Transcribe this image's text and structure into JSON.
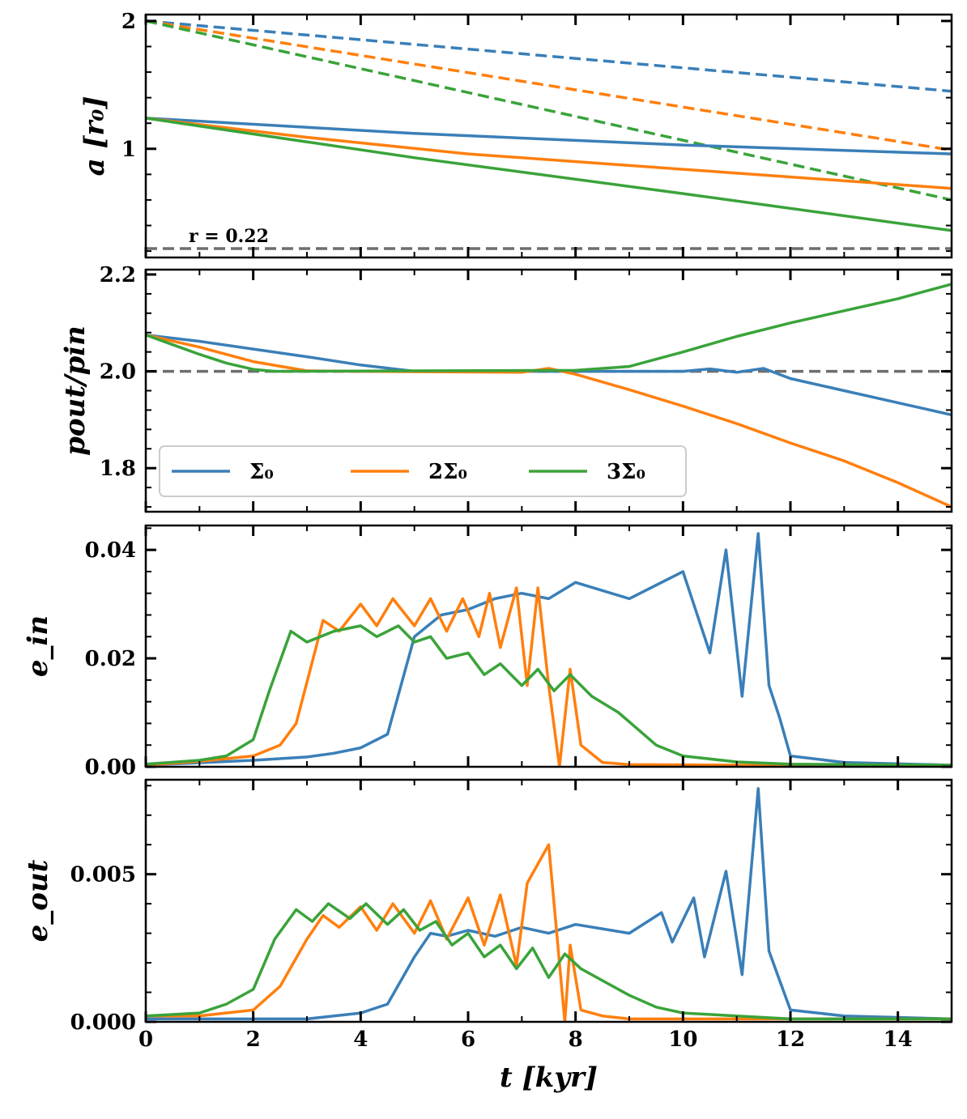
{
  "chart_data": {
    "type": "line",
    "xlabel": "t [kyr]",
    "xlim": [
      0,
      15
    ],
    "xticks": [
      0,
      2,
      4,
      6,
      8,
      10,
      12,
      14
    ],
    "xtick_labels": [
      "0",
      "2",
      "4",
      "6",
      "8",
      "10",
      "12",
      "14"
    ],
    "colors": {
      "sigma0": "#3a7fb8",
      "sigma2": "#ff7f0e",
      "sigma3": "#3aa33a",
      "ref": "#6e6e6e"
    },
    "legend": {
      "placement": "lower-left of panel 2",
      "entries": [
        {
          "key": "sigma0",
          "label": "Σ₀"
        },
        {
          "key": "sigma2",
          "label": "2Σ₀"
        },
        {
          "key": "sigma3",
          "label": "3Σ₀"
        }
      ]
    },
    "panels": [
      {
        "id": "a",
        "ylabel": "a [r₀]",
        "ylim": [
          0.15,
          2.05
        ],
        "yticks": [
          1,
          2
        ],
        "ytick_labels": [
          "1",
          "2"
        ],
        "annotation": "r = 0.22",
        "reference_line": 0.22,
        "series": [
          {
            "key": "sigma0",
            "style": "dashed",
            "x": [
              0,
              15
            ],
            "y": [
              2.0,
              1.45
            ]
          },
          {
            "key": "sigma2",
            "style": "dashed",
            "x": [
              0,
              15
            ],
            "y": [
              2.0,
              0.99
            ]
          },
          {
            "key": "sigma3",
            "style": "dashed",
            "x": [
              0,
              15
            ],
            "y": [
              2.0,
              0.6
            ]
          },
          {
            "key": "sigma0",
            "style": "solid",
            "x": [
              0,
              5,
              10,
              15
            ],
            "y": [
              1.24,
              1.12,
              1.03,
              0.96
            ]
          },
          {
            "key": "sigma2",
            "style": "solid",
            "x": [
              0,
              3,
              6,
              10,
              15
            ],
            "y": [
              1.24,
              1.09,
              0.96,
              0.84,
              0.69
            ]
          },
          {
            "key": "sigma3",
            "style": "solid",
            "x": [
              0,
              5,
              10,
              15
            ],
            "y": [
              1.24,
              0.93,
              0.65,
              0.36
            ]
          }
        ]
      },
      {
        "id": "ratio",
        "ylabel": "pout/pin",
        "ylim": [
          1.71,
          2.21
        ],
        "yticks": [
          1.8,
          2.0,
          2.2
        ],
        "ytick_labels": [
          "1.8",
          "2.0",
          "2.2"
        ],
        "reference_line": 2.0,
        "series": [
          {
            "key": "sigma0",
            "x": [
              0,
              1,
              2,
              3,
              4,
              5,
              8,
              10,
              10.5,
              11,
              11.5,
              12,
              13,
              14,
              15
            ],
            "y": [
              2.075,
              2.062,
              2.046,
              2.03,
              2.013,
              2.0,
              2.0,
              2.0,
              2.005,
              1.998,
              2.006,
              1.985,
              1.96,
              1.935,
              1.91
            ]
          },
          {
            "key": "sigma2",
            "x": [
              0,
              1,
              2,
              3,
              4,
              7,
              7.5,
              8,
              9,
              10,
              11,
              12,
              13,
              14,
              15
            ],
            "y": [
              2.075,
              2.05,
              2.02,
              2.001,
              2.0,
              1.998,
              2.006,
              1.994,
              1.962,
              1.928,
              1.892,
              1.852,
              1.815,
              1.77,
              1.72
            ]
          },
          {
            "key": "sigma3",
            "x": [
              0,
              0.5,
              1,
              1.5,
              2,
              2.4,
              8,
              9,
              10,
              11,
              12,
              13,
              14,
              15
            ],
            "y": [
              2.075,
              2.055,
              2.035,
              2.017,
              2.004,
              2.0,
              2.002,
              2.01,
              2.04,
              2.072,
              2.1,
              2.125,
              2.15,
              2.18
            ]
          }
        ]
      },
      {
        "id": "ein",
        "ylabel": "e_in",
        "ylim": [
          0.0,
          0.0445
        ],
        "yticks": [
          0.0,
          0.02,
          0.04
        ],
        "ytick_labels": [
          "0.00",
          "0.02",
          "0.04"
        ],
        "series": [
          {
            "key": "sigma0",
            "x": [
              0,
              2,
              3,
              3.5,
              4,
              4.5,
              5,
              5.5,
              6,
              6.5,
              7,
              7.5,
              8,
              9,
              10,
              10.5,
              10.8,
              11.1,
              11.4,
              11.6,
              11.8,
              12,
              13,
              15
            ],
            "y": [
              0.0003,
              0.0012,
              0.0018,
              0.0025,
              0.0035,
              0.006,
              0.024,
              0.028,
              0.029,
              0.031,
              0.032,
              0.031,
              0.034,
              0.031,
              0.036,
              0.021,
              0.04,
              0.013,
              0.043,
              0.015,
              0.009,
              0.002,
              0.0008,
              0.0003
            ]
          },
          {
            "key": "sigma2",
            "x": [
              0,
              1,
              2,
              2.5,
              2.8,
              3.3,
              3.6,
              4.0,
              4.3,
              4.6,
              5.0,
              5.3,
              5.6,
              5.9,
              6.2,
              6.4,
              6.6,
              6.9,
              7.1,
              7.3,
              7.5,
              7.7,
              7.9,
              8.1,
              8.5,
              9,
              15
            ],
            "y": [
              0.0003,
              0.001,
              0.002,
              0.004,
              0.008,
              0.027,
              0.025,
              0.03,
              0.026,
              0.031,
              0.026,
              0.031,
              0.025,
              0.031,
              0.024,
              0.032,
              0.022,
              0.033,
              0.015,
              0.033,
              0.015,
              0.0,
              0.018,
              0.004,
              0.0008,
              0.0004,
              0.0001
            ]
          },
          {
            "key": "sigma3",
            "x": [
              0,
              1,
              1.5,
              2.0,
              2.3,
              2.7,
              3.0,
              3.5,
              4.0,
              4.3,
              4.7,
              5.0,
              5.3,
              5.6,
              6.0,
              6.3,
              6.6,
              7.0,
              7.3,
              7.6,
              7.9,
              8.3,
              8.8,
              9.5,
              10,
              11,
              12,
              15
            ],
            "y": [
              0.0005,
              0.0012,
              0.002,
              0.005,
              0.014,
              0.025,
              0.023,
              0.025,
              0.026,
              0.024,
              0.026,
              0.023,
              0.024,
              0.02,
              0.021,
              0.017,
              0.019,
              0.015,
              0.018,
              0.014,
              0.017,
              0.013,
              0.01,
              0.004,
              0.002,
              0.0009,
              0.0005,
              0.0003
            ]
          }
        ]
      },
      {
        "id": "eout",
        "ylabel": "e_out",
        "ylim": [
          0.0,
          0.0082
        ],
        "yticks": [
          0.0,
          0.005
        ],
        "ytick_labels": [
          "0.000",
          "0.005"
        ],
        "series": [
          {
            "key": "sigma0",
            "x": [
              0,
              2,
              3,
              3.5,
              4,
              4.5,
              5,
              5.3,
              5.6,
              6,
              6.5,
              7,
              7.5,
              8,
              9,
              9.6,
              9.8,
              10.2,
              10.4,
              10.8,
              11.1,
              11.4,
              11.6,
              11.8,
              12,
              13,
              15
            ],
            "y": [
              0.0001,
              0.0001,
              0.0001,
              0.0002,
              0.0003,
              0.0006,
              0.0022,
              0.003,
              0.0029,
              0.0031,
              0.0029,
              0.0032,
              0.003,
              0.0033,
              0.003,
              0.0037,
              0.0027,
              0.0042,
              0.0022,
              0.0051,
              0.0016,
              0.0079,
              0.0024,
              0.0014,
              0.0004,
              0.0002,
              0.0001
            ]
          },
          {
            "key": "sigma2",
            "x": [
              0,
              1,
              2,
              2.5,
              3.0,
              3.3,
              3.6,
              4.0,
              4.3,
              4.6,
              5.0,
              5.3,
              5.6,
              6.0,
              6.3,
              6.6,
              6.9,
              7.1,
              7.5,
              7.8,
              7.9,
              8.1,
              8.5,
              9,
              15
            ],
            "y": [
              0.0002,
              0.0002,
              0.0004,
              0.0012,
              0.0028,
              0.0036,
              0.0032,
              0.0039,
              0.0031,
              0.004,
              0.003,
              0.0041,
              0.0028,
              0.0042,
              0.0026,
              0.0043,
              0.0019,
              0.0047,
              0.006,
              0.0,
              0.0026,
              0.0004,
              0.0002,
              0.0001,
              0.0001
            ]
          },
          {
            "key": "sigma3",
            "x": [
              0,
              1,
              1.5,
              2.0,
              2.4,
              2.8,
              3.1,
              3.4,
              3.8,
              4.1,
              4.5,
              4.8,
              5.1,
              5.4,
              5.7,
              6.0,
              6.3,
              6.6,
              6.9,
              7.2,
              7.5,
              7.8,
              8.1,
              8.5,
              9,
              9.5,
              10,
              11,
              12,
              15
            ],
            "y": [
              0.0002,
              0.0003,
              0.0006,
              0.0011,
              0.0028,
              0.0038,
              0.0034,
              0.004,
              0.0035,
              0.004,
              0.0033,
              0.0038,
              0.0031,
              0.0034,
              0.0026,
              0.003,
              0.0022,
              0.0026,
              0.0018,
              0.0025,
              0.0015,
              0.0023,
              0.0018,
              0.0014,
              0.0009,
              0.0005,
              0.0003,
              0.0002,
              0.0001,
              0.0001
            ]
          }
        ]
      }
    ]
  }
}
